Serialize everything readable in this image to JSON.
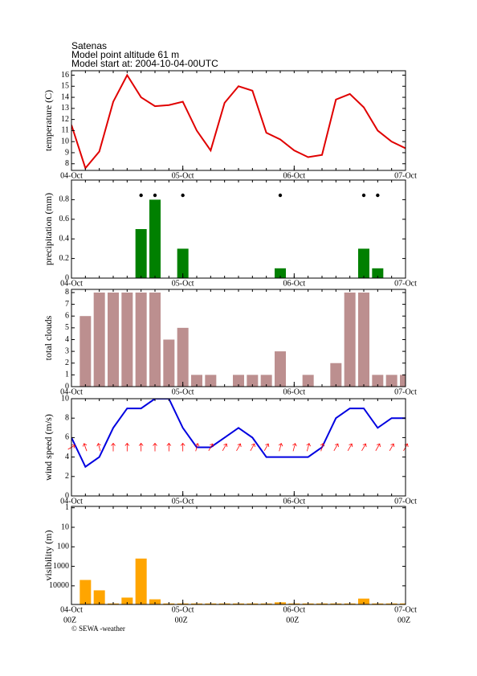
{
  "header": {
    "title": "Satenas",
    "altitude": "Model point altitude  61 m",
    "start": "Model start at: 2004-10-04-00UTC"
  },
  "footer": "© SEWA -weather",
  "time_axis": {
    "x": [
      0,
      3,
      6,
      9,
      12,
      15,
      18,
      21,
      24,
      27,
      30,
      33,
      36,
      39,
      42,
      45,
      48,
      51,
      54,
      57,
      60,
      63,
      66,
      69,
      72
    ],
    "xlim": [
      0,
      72
    ],
    "xticks": [
      {
        "value": 0,
        "label": "04-Oct"
      },
      {
        "value": 24,
        "label": "05-Oct"
      },
      {
        "value": 48,
        "label": "06-Oct"
      },
      {
        "value": 72,
        "label": "07-Oct"
      }
    ],
    "xtick_sublabels": [
      "00Z",
      "00Z",
      "00Z",
      "00Z"
    ]
  },
  "chart_data": [
    {
      "type": "line",
      "ylabel": "temperature (C)",
      "color": "#e00000",
      "values": [
        11.5,
        7.6,
        9.1,
        13.6,
        16.0,
        14.0,
        13.2,
        13.3,
        13.6,
        11.0,
        9.2,
        13.5,
        15.0,
        14.6,
        10.8,
        10.2,
        9.2,
        8.6,
        8.8,
        13.8,
        14.3,
        13.1,
        11.0,
        10.0,
        9.4
      ],
      "ylim": [
        7.4,
        16.4
      ],
      "yticks": [
        8,
        9,
        10,
        11,
        12,
        13,
        14,
        15,
        16
      ]
    },
    {
      "type": "bar",
      "ylabel": "precipitation (mm)",
      "color": "#008000",
      "marker_dots": true,
      "values": [
        0,
        0,
        0,
        0,
        0,
        0.5,
        0.8,
        0,
        0.3,
        0,
        0,
        0,
        0,
        0,
        0,
        0.1,
        0,
        0,
        0,
        0,
        0,
        0.3,
        0.1,
        0,
        0
      ],
      "ylim": [
        0,
        1
      ],
      "yticks": [
        0,
        0.2,
        0.4,
        0.6,
        0.8
      ]
    },
    {
      "type": "bar",
      "ylabel": "total clouds",
      "color": "#bc8f8f",
      "values": [
        0,
        6,
        8,
        8,
        8,
        8,
        8,
        4,
        5,
        1,
        1,
        0,
        1,
        1,
        1,
        3,
        0,
        1,
        0,
        2,
        8,
        8,
        1,
        1,
        1
      ],
      "ylim": [
        0,
        8.27
      ],
      "yticks": [
        0,
        1,
        2,
        3,
        4,
        5,
        6,
        7,
        8
      ]
    },
    {
      "type": "line",
      "ylabel": "wind speed (m/s)",
      "color": "#0000e0",
      "values": [
        6,
        3,
        4,
        7,
        9,
        9,
        10,
        10,
        7,
        5,
        5,
        6,
        7,
        6,
        4,
        4,
        4,
        4,
        5,
        8,
        9,
        9,
        7,
        8,
        8
      ],
      "ylim": [
        0,
        10
      ],
      "yticks": [
        0,
        2,
        4,
        6,
        8,
        10
      ],
      "arrows": {
        "color": "#ff0000",
        "values": [
          60,
          340,
          345,
          0,
          0,
          0,
          0,
          0,
          0,
          15,
          30,
          30,
          30,
          30,
          30,
          15,
          15,
          15,
          15,
          30,
          30,
          30,
          30,
          30,
          30
        ]
      }
    },
    {
      "type": "bar",
      "ylabel": "visibility (m)",
      "color": "#ffa500",
      "log_scale": true,
      "values": [
        null,
        5000,
        17000,
        80000,
        40000,
        400,
        49000,
        80000,
        80000,
        80000,
        80000,
        80000,
        80000,
        80000,
        80000,
        70000,
        80000,
        80000,
        80000,
        80000,
        80000,
        45000,
        80000,
        80000,
        80000
      ],
      "ylim": [
        90000,
        0.85
      ],
      "yticks": [
        1,
        10,
        100,
        1000,
        10000
      ]
    }
  ]
}
